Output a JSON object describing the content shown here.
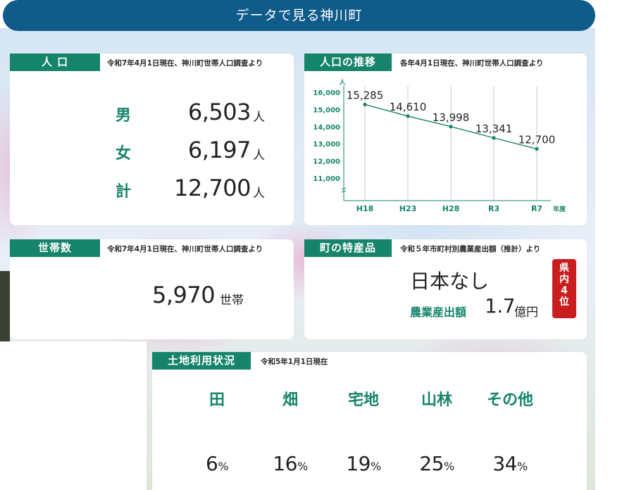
{
  "header": {
    "title": "データで見る神川町"
  },
  "population": {
    "tag": "人 口",
    "note": "令和7年4月1日現在、神川町世帯人口調査より",
    "rows": [
      {
        "label": "男",
        "value": "6,503",
        "unit": "人"
      },
      {
        "label": "女",
        "value": "6,197",
        "unit": "人"
      },
      {
        "label": "計",
        "value": "12,700",
        "unit": "人"
      }
    ]
  },
  "trend": {
    "tag": "人口の推移",
    "note": "各年4月1日現在、神川町世帯人口調査より"
  },
  "chart_data": {
    "type": "line",
    "categories": [
      "H18",
      "H23",
      "H28",
      "R3",
      "R7"
    ],
    "series": [
      {
        "values": [
          15285,
          14610,
          13998,
          13341,
          12700
        ]
      }
    ],
    "data_labels": [
      "15,285",
      "14,610",
      "13,998",
      "13,341",
      "12,700"
    ],
    "ylabel": "人",
    "xlabel": "年度",
    "y_ticks": [
      "11,000",
      "12,000",
      "13,000",
      "14,000",
      "15,000",
      "16,000"
    ],
    "y_tick_values": [
      11000,
      12000,
      13000,
      14000,
      15000,
      16000
    ],
    "ylim": [
      11000,
      16000
    ],
    "axis_break": true,
    "grid": "vertical"
  },
  "households": {
    "tag": "世帯数",
    "note": "令和7年4月1日現在、神川町世帯人口調査より",
    "value": "5,970",
    "unit": "世帯"
  },
  "specialty": {
    "tag": "町の特産品",
    "note": "令和５年市町村別農業産出額（推計）より",
    "name": "日本なし",
    "label": "農業産出額",
    "value": "1.7",
    "unit": "億円",
    "rank": [
      "県",
      "内",
      "4",
      "位"
    ]
  },
  "land": {
    "tag": "土地利用状況",
    "note": "令和5年1月1日現在",
    "items": [
      {
        "name": "田",
        "value": "6",
        "unit": "%"
      },
      {
        "name": "畑",
        "value": "16",
        "unit": "%"
      },
      {
        "name": "宅地",
        "value": "19",
        "unit": "%"
      },
      {
        "name": "山林",
        "value": "25",
        "unit": "%"
      },
      {
        "name": "その他",
        "value": "34",
        "unit": "%"
      }
    ]
  },
  "colors": {
    "header": "#0f5b8a",
    "accent": "#16846a",
    "badge": "#c81e1e"
  }
}
